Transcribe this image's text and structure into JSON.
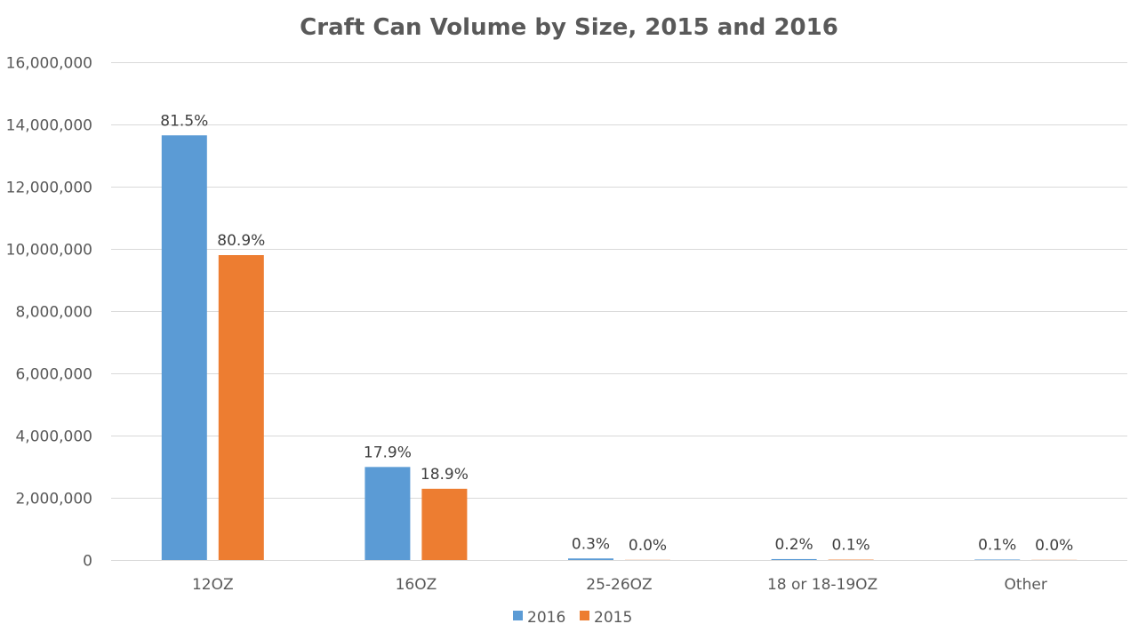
{
  "chart_data": {
    "type": "bar",
    "title": "Craft Can Volume by Size, 2015 and 2016",
    "xlabel": "",
    "ylabel": "",
    "categories": [
      "12OZ",
      "16OZ",
      "25-26OZ",
      "18 or 18-19OZ",
      "Other"
    ],
    "series": [
      {
        "name": "2016",
        "color": "#5b9bd5",
        "values": [
          13650000,
          2990000,
          50000,
          30000,
          15000
        ],
        "labels": [
          "81.5%",
          "17.9%",
          "0.3%",
          "0.2%",
          "0.1%"
        ]
      },
      {
        "name": "2015",
        "color": "#ed7d31",
        "values": [
          9800000,
          2290000,
          5000,
          12000,
          5000
        ],
        "labels": [
          "80.9%",
          "18.9%",
          "0.0%",
          "0.1%",
          "0.0%"
        ]
      }
    ],
    "ylim": [
      0,
      16000000
    ],
    "yticks": [
      0,
      2000000,
      4000000,
      6000000,
      8000000,
      10000000,
      12000000,
      14000000,
      16000000
    ],
    "ytick_labels": [
      "0",
      "2,000,000",
      "4,000,000",
      "6,000,000",
      "8,000,000",
      "10,000,000",
      "12,000,000",
      "14,000,000",
      "16,000,000"
    ],
    "grid": true,
    "legend_position": "bottom"
  }
}
